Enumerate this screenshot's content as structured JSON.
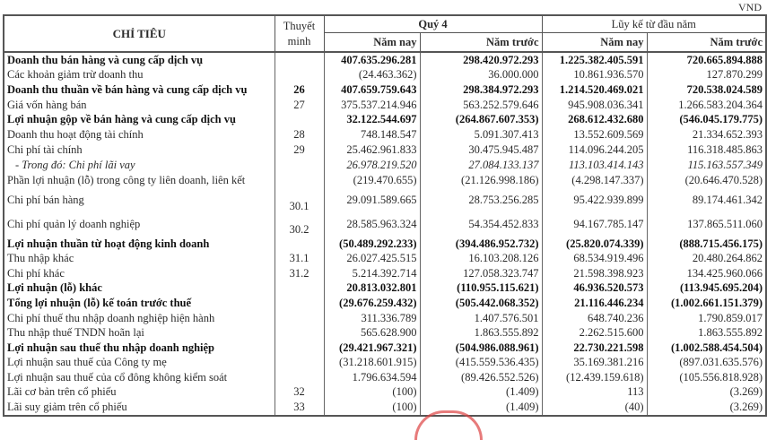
{
  "unit": "VND",
  "header": {
    "indicator": "CHỈ TIÊU",
    "note_line1": "Thuyết",
    "note_line2": "minh",
    "quarter": "Quý 4",
    "ytd": "Lũy kế từ đầu năm",
    "this_year": "Năm nay",
    "last_year": "Năm trước"
  },
  "rows": [
    {
      "label": "Doanh thu bán hàng và cung cấp dịch vụ",
      "note": "",
      "q_now": "407.635.296.281",
      "q_prev": "298.420.972.293",
      "y_now": "1.225.382.405.591",
      "y_prev": "720.665.894.888"
    },
    {
      "label": "Các khoản giảm trừ doanh thu",
      "note": "",
      "q_now": "(24.463.362)",
      "q_prev": "36.000.000",
      "y_now": "10.861.936.570",
      "y_prev": "127.870.299"
    },
    {
      "label": "Doanh thu thuần về bán hàng và cung cấp dịch vụ",
      "note": "26",
      "q_now": "407.659.759.643",
      "q_prev": "298.384.972.293",
      "y_now": "1.214.520.469.021",
      "y_prev": "720.538.024.589"
    },
    {
      "label": "Giá vốn hàng bán",
      "note": "27",
      "q_now": "375.537.214.946",
      "q_prev": "563.252.579.646",
      "y_now": "945.908.036.341",
      "y_prev": "1.266.583.204.364"
    },
    {
      "label": "Lợi nhuận gộp về bán hàng và cung cấp dịch vụ",
      "note": "",
      "q_now": "32.122.544.697",
      "q_prev": "(264.867.607.353)",
      "y_now": "268.612.432.680",
      "y_prev": "(546.045.179.775)"
    },
    {
      "label": "Doanh thu hoạt động tài chính",
      "note": "28",
      "q_now": "748.148.547",
      "q_prev": "5.091.307.413",
      "y_now": "13.552.609.569",
      "y_prev": "21.334.652.393"
    },
    {
      "label": "Chi phí tài chính",
      "note": "29",
      "q_now": "25.462.961.833",
      "q_prev": "30.475.945.487",
      "y_now": "114.096.244.205",
      "y_prev": "116.318.485.863"
    },
    {
      "label": "- Trong đó: Chi phí lãi vay",
      "note": "",
      "q_now": "26.978.219.520",
      "q_prev": "27.084.133.137",
      "y_now": "113.103.414.143",
      "y_prev": "115.163.557.349"
    },
    {
      "label": "Phần lợi nhuận (lỗ) trong công ty liên doanh, liên kết",
      "note": "",
      "q_now": "(219.470.655)",
      "q_prev": "(21.126.998.186)",
      "y_now": "(4.298.147.337)",
      "y_prev": "(20.646.470.528)"
    },
    {
      "label": "Chi phí bán hàng",
      "note": "30.1",
      "q_now": "29.091.589.665",
      "q_prev": "28.753.256.285",
      "y_now": "95.422.939.899",
      "y_prev": "89.174.461.342"
    },
    {
      "label": "Chi phí quản lý doanh nghiệp",
      "note": "30.2",
      "q_now": "28.585.963.324",
      "q_prev": "54.354.452.833",
      "y_now": "94.167.785.147",
      "y_prev": "137.865.511.060"
    },
    {
      "label": "Lợi nhuận thuần từ hoạt động kinh doanh",
      "note": "",
      "q_now": "(50.489.292.233)",
      "q_prev": "(394.486.952.732)",
      "y_now": "(25.820.074.339)",
      "y_prev": "(888.715.456.175)"
    },
    {
      "label": "Thu nhập khác",
      "note": "31.1",
      "q_now": "26.027.425.515",
      "q_prev": "16.103.208.126",
      "y_now": "68.534.919.496",
      "y_prev": "20.480.264.862"
    },
    {
      "label": "Chi phí khác",
      "note": "31.2",
      "q_now": "5.214.392.714",
      "q_prev": "127.058.323.747",
      "y_now": "21.598.398.923",
      "y_prev": "134.425.960.066"
    },
    {
      "label": "Lợi nhuận (lỗ) khác",
      "note": "",
      "q_now": "20.813.032.801",
      "q_prev": "(110.955.115.621)",
      "y_now": "46.936.520.573",
      "y_prev": "(113.945.695.204)"
    },
    {
      "label": "Tổng lợi nhuận (lỗ) kế toán trước thuế",
      "note": "",
      "q_now": "(29.676.259.432)",
      "q_prev": "(505.442.068.352)",
      "y_now": "21.116.446.234",
      "y_prev": "(1.002.661.151.379)"
    },
    {
      "label": "Chi phí thuế thu nhập doanh nghiệp hiện hành",
      "note": "",
      "q_now": "311.336.789",
      "q_prev": "1.407.576.501",
      "y_now": "648.740.236",
      "y_prev": "1.790.859.017"
    },
    {
      "label": "Thu nhập thuế TNDN hoãn lại",
      "note": "",
      "q_now": "565.628.900",
      "q_prev": "1.863.555.892",
      "y_now": "2.262.515.600",
      "y_prev": "1.863.555.892"
    },
    {
      "label": "Lợi nhuận sau thuế thu nhập doanh nghiệp",
      "note": "",
      "q_now": "(29.421.967.321)",
      "q_prev": "(504.986.088.961)",
      "y_now": "22.730.221.598",
      "y_prev": "(1.002.588.454.504)"
    },
    {
      "label": "Lợi nhuận sau thuế của Công ty mẹ",
      "note": "",
      "q_now": "(31.218.601.915)",
      "q_prev": "(415.559.536.435)",
      "y_now": "35.169.381.216",
      "y_prev": "(897.031.635.576)"
    },
    {
      "label": "Lợi nhuận sau thuế của cổ đông không kiểm soát",
      "note": "",
      "q_now": "1.796.634.594",
      "q_prev": "(89.426.552.526)",
      "y_now": "(12.439.159.618)",
      "y_prev": "(105.556.818.928)"
    },
    {
      "label": "Lãi cơ bản trên cổ phiếu",
      "note": "32",
      "q_now": "(100)",
      "q_prev": "(1.409)",
      "y_now": "113",
      "y_prev": "(3.269)"
    },
    {
      "label": "Lãi suy giảm trên cổ phiếu",
      "note": "33",
      "q_now": "(100)",
      "q_prev": "(1.409)",
      "y_now": "(40)",
      "y_prev": "(3.269)"
    }
  ]
}
